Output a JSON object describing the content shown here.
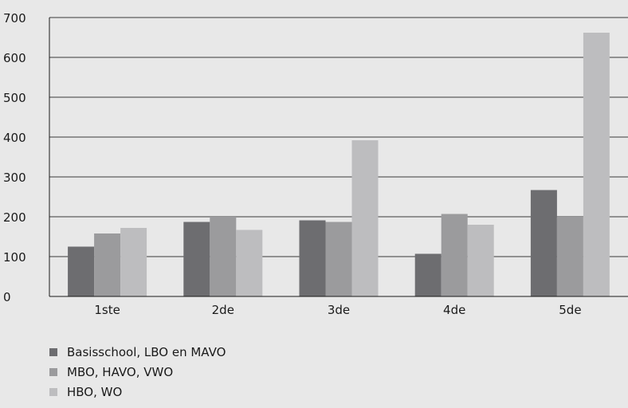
{
  "chart_data": {
    "type": "bar",
    "categories": [
      "1ste",
      "2de",
      "3de",
      "4de",
      "5de"
    ],
    "series": [
      {
        "name": "Basisschool, LBO en MAVO",
        "color": "#6d6d70",
        "values": [
          125,
          187,
          191,
          107,
          267
        ]
      },
      {
        "name": "MBO, HAVO, VWO",
        "color": "#9b9b9d",
        "values": [
          158,
          200,
          187,
          207,
          200
        ]
      },
      {
        "name": "HBO, WO",
        "color": "#bdbdbf",
        "values": [
          172,
          167,
          392,
          180,
          662
        ]
      }
    ],
    "title": "",
    "xlabel": "",
    "ylabel": "",
    "ylim": [
      0,
      700
    ],
    "yticks": [
      0,
      100,
      200,
      300,
      400,
      500,
      600,
      700
    ],
    "grid": true,
    "legend_position": "bottom-left"
  }
}
